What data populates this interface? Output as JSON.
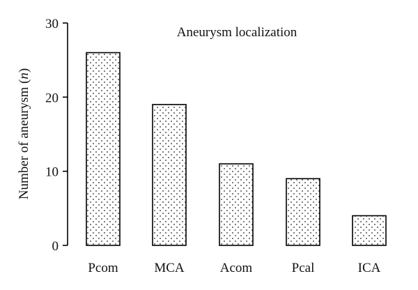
{
  "chart_data": {
    "type": "bar",
    "title": "Aneurysm localization",
    "xlabel": "",
    "ylabel_main": "Number of aneurysm (",
    "ylabel_italic": "n",
    "ylabel_close": ")",
    "categories": [
      "Pcom",
      "MCA",
      "Acom",
      "Pcal",
      "ICA"
    ],
    "values": [
      26,
      19,
      11,
      9,
      4
    ],
    "ylim": [
      0,
      30
    ],
    "yticks": [
      0,
      10,
      20,
      30
    ],
    "bar_fill": "dotted",
    "grid": false,
    "legend": "none"
  }
}
